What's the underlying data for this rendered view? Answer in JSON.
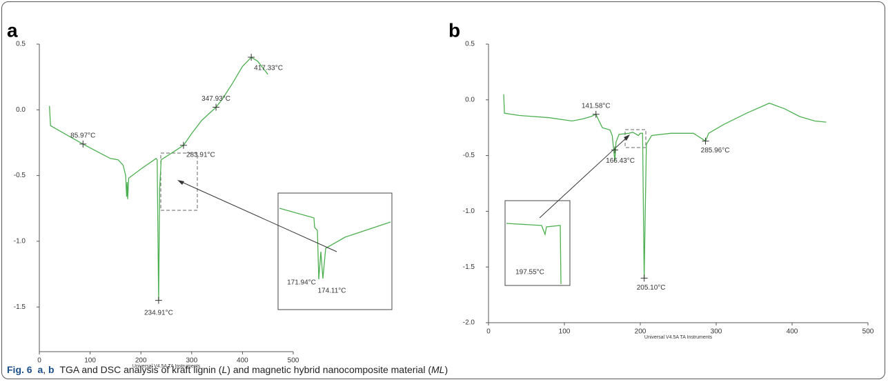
{
  "chart_data": [
    {
      "type": "line",
      "panel_label": "a",
      "footer": "Universal V4.5A TA Instruments",
      "xlim": [
        0,
        500
      ],
      "xticks": [
        0,
        100,
        200,
        300,
        400,
        500
      ],
      "ylim": [
        -1.84,
        0.5
      ],
      "yticks": [
        0.5,
        {
          "value": 0,
          "label": "0.0"
        },
        -0.5,
        {
          "value": -1,
          "label": "-1.0"
        },
        -1.5
      ],
      "series": [
        {
          "color": "#4caf50",
          "x": [
            20,
            22,
            40,
            85.97,
            120,
            140,
            155,
            165,
            170,
            171.94,
            173,
            174.11,
            176,
            200,
            230,
            232,
            234.91,
            237,
            240,
            260,
            283.91,
            300,
            320,
            347.93,
            360,
            380,
            400,
            417.33,
            430,
            450
          ],
          "values": [
            0.03,
            -0.12,
            -0.16,
            -0.26,
            -0.33,
            -0.37,
            -0.38,
            -0.42,
            -0.5,
            -0.66,
            -0.55,
            -0.68,
            -0.52,
            -0.45,
            -0.37,
            -0.38,
            -1.45,
            -0.6,
            -0.38,
            -0.33,
            -0.27,
            -0.18,
            -0.08,
            0.02,
            0.08,
            0.2,
            0.33,
            0.4,
            0.37,
            0.27
          ]
        }
      ],
      "annotations": [
        {
          "text": "85.97°C",
          "x": 85.97,
          "y": -0.26
        },
        {
          "text": "234.91°C",
          "x": 234.91,
          "y": -1.45
        },
        {
          "text": "283.91°C",
          "x": 283.91,
          "y": -0.27
        },
        {
          "text": "347.93°C",
          "x": 347.93,
          "y": 0.02
        },
        {
          "text": "417.33°C",
          "x": 417.33,
          "y": 0.4
        }
      ],
      "inset_labels": [
        "171.94°C",
        "174.11°C"
      ]
    },
    {
      "type": "line",
      "panel_label": "b",
      "footer": "Universal V4.5A TA Instruments",
      "xlim": [
        0,
        500
      ],
      "xticks": [
        0,
        100,
        200,
        300,
        400,
        500
      ],
      "ylim": [
        -2,
        0.5
      ],
      "yticks": [
        0.5,
        {
          "value": 0,
          "label": "0.0"
        },
        -0.5,
        {
          "value": -1,
          "label": "-1.0"
        },
        -1.5,
        {
          "value": -2,
          "label": "-2.0"
        }
      ],
      "series": [
        {
          "color": "#4caf50",
          "x": [
            20,
            21,
            40,
            80,
            110,
            125,
            135,
            141.58,
            145,
            150,
            160,
            163,
            166.43,
            168,
            172,
            185,
            190,
            197.55,
            200,
            203,
            205.1,
            208,
            215,
            240,
            270,
            285.96,
            290,
            310,
            340,
            370,
            390,
            410,
            430,
            445
          ],
          "values": [
            0.05,
            -0.12,
            -0.14,
            -0.16,
            -0.19,
            -0.17,
            -0.15,
            -0.13,
            -0.18,
            -0.25,
            -0.27,
            -0.32,
            -0.55,
            -0.38,
            -0.31,
            -0.3,
            -0.29,
            -0.32,
            -0.3,
            -0.3,
            -1.6,
            -0.4,
            -0.32,
            -0.3,
            -0.3,
            -0.37,
            -0.3,
            -0.22,
            -0.12,
            -0.03,
            -0.08,
            -0.15,
            -0.19,
            -0.2
          ]
        }
      ],
      "annotations": [
        {
          "text": "141.58°C",
          "x": 141.58,
          "y": -0.13
        },
        {
          "text": "166.43°C",
          "x": 166.43,
          "y": -0.45
        },
        {
          "text": "205.10°C",
          "x": 205.1,
          "y": -1.6
        },
        {
          "text": "285.96°C",
          "x": 285.96,
          "y": -0.37
        }
      ],
      "inset_labels": [
        "197.55°C"
      ]
    }
  ],
  "caption": {
    "parts": [
      "Fig. 6",
      "a",
      ", ",
      "b",
      "TGA and DSC analysis of kraft lignin (",
      "L",
      ") and magnetic hybrid nanocomposite material (",
      "ML",
      ")"
    ]
  }
}
